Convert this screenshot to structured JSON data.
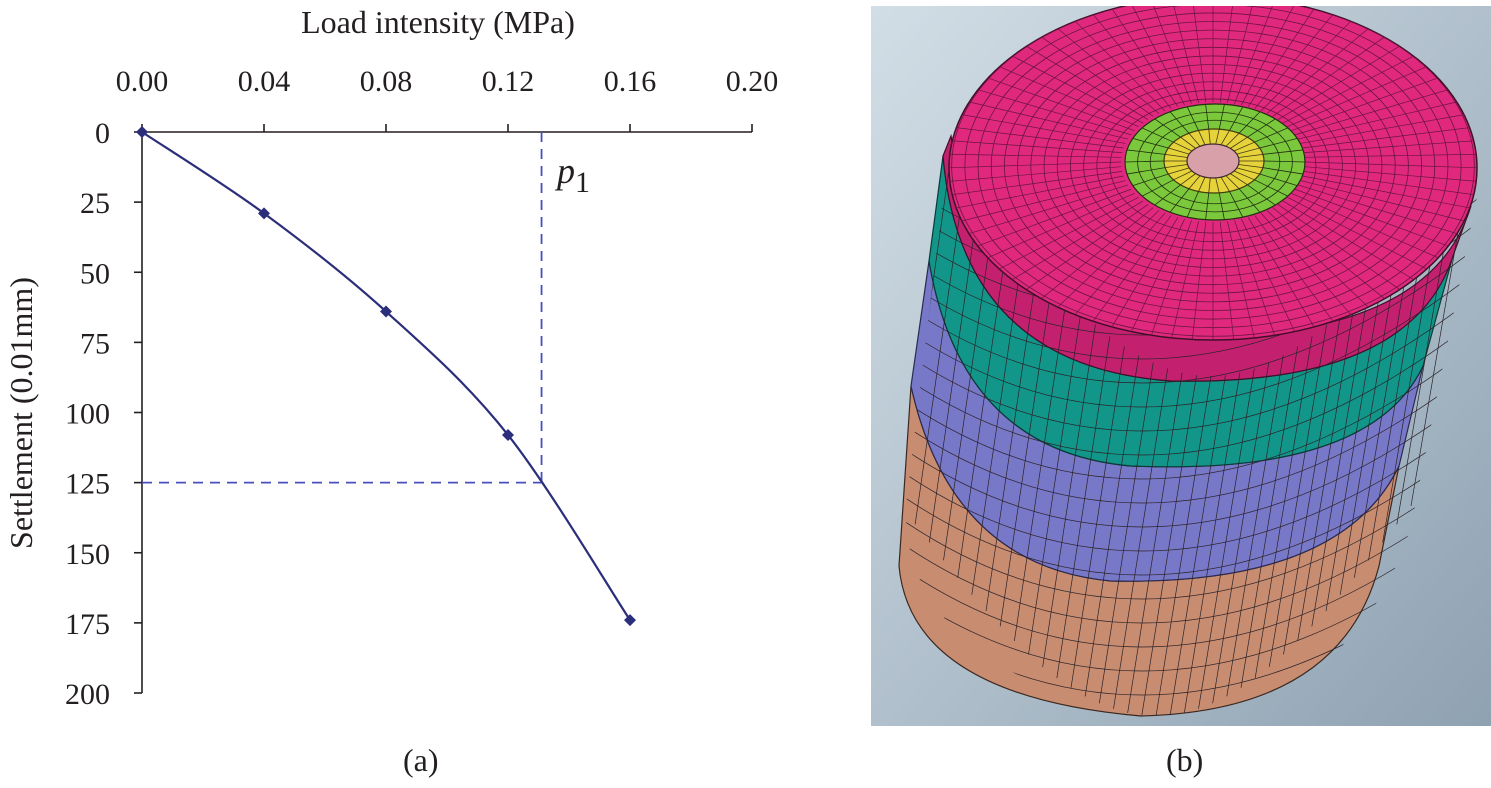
{
  "chart_data": {
    "type": "line",
    "panel_label": "(a)",
    "xlabel": "Load intensity (MPa)",
    "ylabel": "Settlement (0.01mm)",
    "xlim": [
      0,
      0.2
    ],
    "ylim": [
      0,
      200
    ],
    "y_inverted": true,
    "x_axis_position": "top",
    "x_ticks": [
      0.0,
      0.04,
      0.08,
      0.12,
      0.16,
      0.2
    ],
    "x_tick_labels": [
      "0.00",
      "0.04",
      "0.08",
      "0.12",
      "0.16",
      "0.20"
    ],
    "y_ticks": [
      0,
      25,
      50,
      75,
      100,
      125,
      150,
      175,
      200
    ],
    "y_tick_labels": [
      "0",
      "25",
      "50",
      "75",
      "100",
      "125",
      "150",
      "175",
      "200"
    ],
    "series": [
      {
        "name": "Load-settlement curve",
        "color": "#2b2e7a",
        "x": [
          0.0,
          0.04,
          0.08,
          0.12,
          0.16
        ],
        "y": [
          0,
          29,
          64,
          108,
          174
        ]
      }
    ],
    "annotations": [
      {
        "label": "p",
        "subscript": "1",
        "x": 0.131,
        "y": 125,
        "style": "dashed",
        "color": "#4a4fc0"
      }
    ],
    "grid": false,
    "legend": "none"
  },
  "figure_b": {
    "panel_label": "(b)",
    "description_colors": {
      "top": "#e0287e",
      "center_core": "#d8a0a8",
      "center_ring": "#e6d23a",
      "center_outer_ring": "#7cc83c",
      "layer_1": "#12968a",
      "layer_2": "#7878c8",
      "layer_3": "#c88c70",
      "background": "#b4c4d0"
    }
  }
}
